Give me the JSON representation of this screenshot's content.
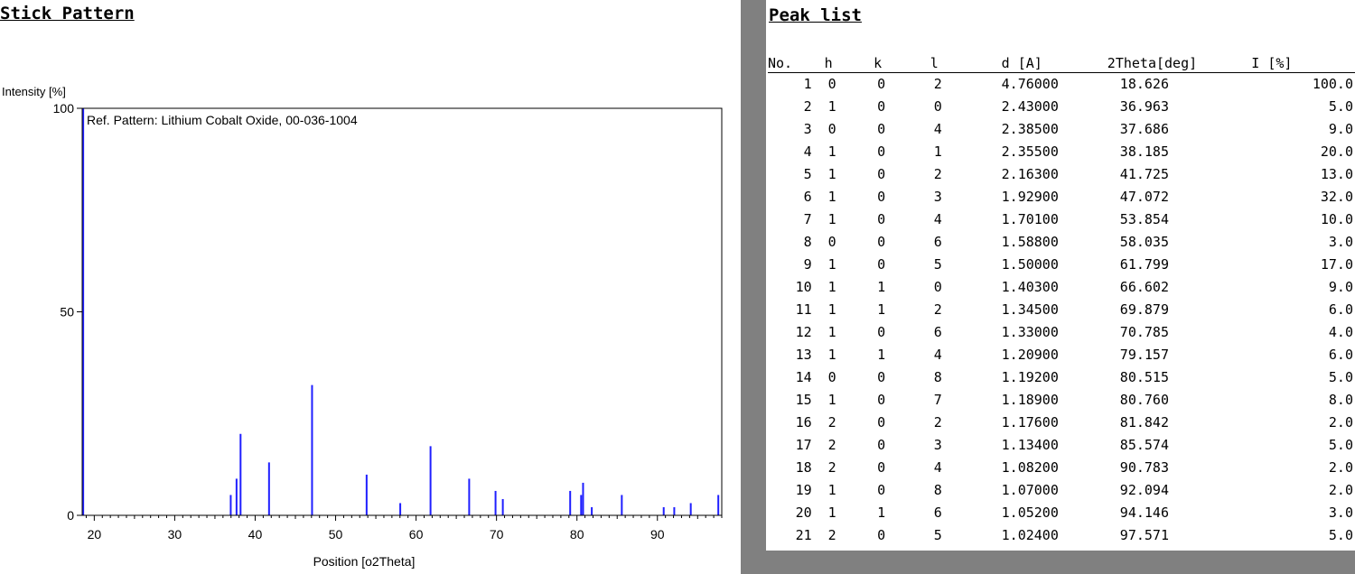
{
  "stick_title": "Stick Pattern",
  "peak_title": "Peak list",
  "chart_data": {
    "type": "bar",
    "ylabel": "Intensity [%]",
    "xlabel": "Position [o2Theta]",
    "annotation": "Ref. Pattern: Lithium Cobalt Oxide, 00-036-1004",
    "xlim": [
      18.5,
      98
    ],
    "ylim": [
      0,
      100
    ],
    "xticks": [
      20,
      30,
      40,
      50,
      60,
      70,
      80,
      90
    ],
    "yticks": [
      0,
      50,
      100
    ],
    "bar_color": "#1f1fff",
    "x": [
      18.626,
      36.963,
      37.686,
      38.185,
      41.725,
      47.072,
      53.854,
      58.035,
      61.799,
      66.602,
      69.879,
      70.785,
      79.157,
      80.515,
      80.76,
      81.842,
      85.574,
      90.783,
      92.094,
      94.146,
      97.571
    ],
    "y": [
      100.0,
      5.0,
      9.0,
      20.0,
      13.0,
      32.0,
      10.0,
      3.0,
      17.0,
      9.0,
      6.0,
      4.0,
      6.0,
      5.0,
      8.0,
      2.0,
      5.0,
      2.0,
      2.0,
      3.0,
      5.0
    ]
  },
  "peak_table": {
    "headers": [
      "No.",
      "h",
      "k",
      "l",
      "d [A]",
      "2Theta[deg]",
      "I [%]"
    ],
    "rows": [
      [
        "1",
        "0",
        "0",
        "2",
        "4.76000",
        "18.626",
        "100.0"
      ],
      [
        "2",
        "1",
        "0",
        "0",
        "2.43000",
        "36.963",
        "5.0"
      ],
      [
        "3",
        "0",
        "0",
        "4",
        "2.38500",
        "37.686",
        "9.0"
      ],
      [
        "4",
        "1",
        "0",
        "1",
        "2.35500",
        "38.185",
        "20.0"
      ],
      [
        "5",
        "1",
        "0",
        "2",
        "2.16300",
        "41.725",
        "13.0"
      ],
      [
        "6",
        "1",
        "0",
        "3",
        "1.92900",
        "47.072",
        "32.0"
      ],
      [
        "7",
        "1",
        "0",
        "4",
        "1.70100",
        "53.854",
        "10.0"
      ],
      [
        "8",
        "0",
        "0",
        "6",
        "1.58800",
        "58.035",
        "3.0"
      ],
      [
        "9",
        "1",
        "0",
        "5",
        "1.50000",
        "61.799",
        "17.0"
      ],
      [
        "10",
        "1",
        "1",
        "0",
        "1.40300",
        "66.602",
        "9.0"
      ],
      [
        "11",
        "1",
        "1",
        "2",
        "1.34500",
        "69.879",
        "6.0"
      ],
      [
        "12",
        "1",
        "0",
        "6",
        "1.33000",
        "70.785",
        "4.0"
      ],
      [
        "13",
        "1",
        "1",
        "4",
        "1.20900",
        "79.157",
        "6.0"
      ],
      [
        "14",
        "0",
        "0",
        "8",
        "1.19200",
        "80.515",
        "5.0"
      ],
      [
        "15",
        "1",
        "0",
        "7",
        "1.18900",
        "80.760",
        "8.0"
      ],
      [
        "16",
        "2",
        "0",
        "2",
        "1.17600",
        "81.842",
        "2.0"
      ],
      [
        "17",
        "2",
        "0",
        "3",
        "1.13400",
        "85.574",
        "5.0"
      ],
      [
        "18",
        "2",
        "0",
        "4",
        "1.08200",
        "90.783",
        "2.0"
      ],
      [
        "19",
        "1",
        "0",
        "8",
        "1.07000",
        "92.094",
        "2.0"
      ],
      [
        "20",
        "1",
        "1",
        "6",
        "1.05200",
        "94.146",
        "3.0"
      ],
      [
        "21",
        "2",
        "0",
        "5",
        "1.02400",
        "97.571",
        "5.0"
      ]
    ]
  }
}
